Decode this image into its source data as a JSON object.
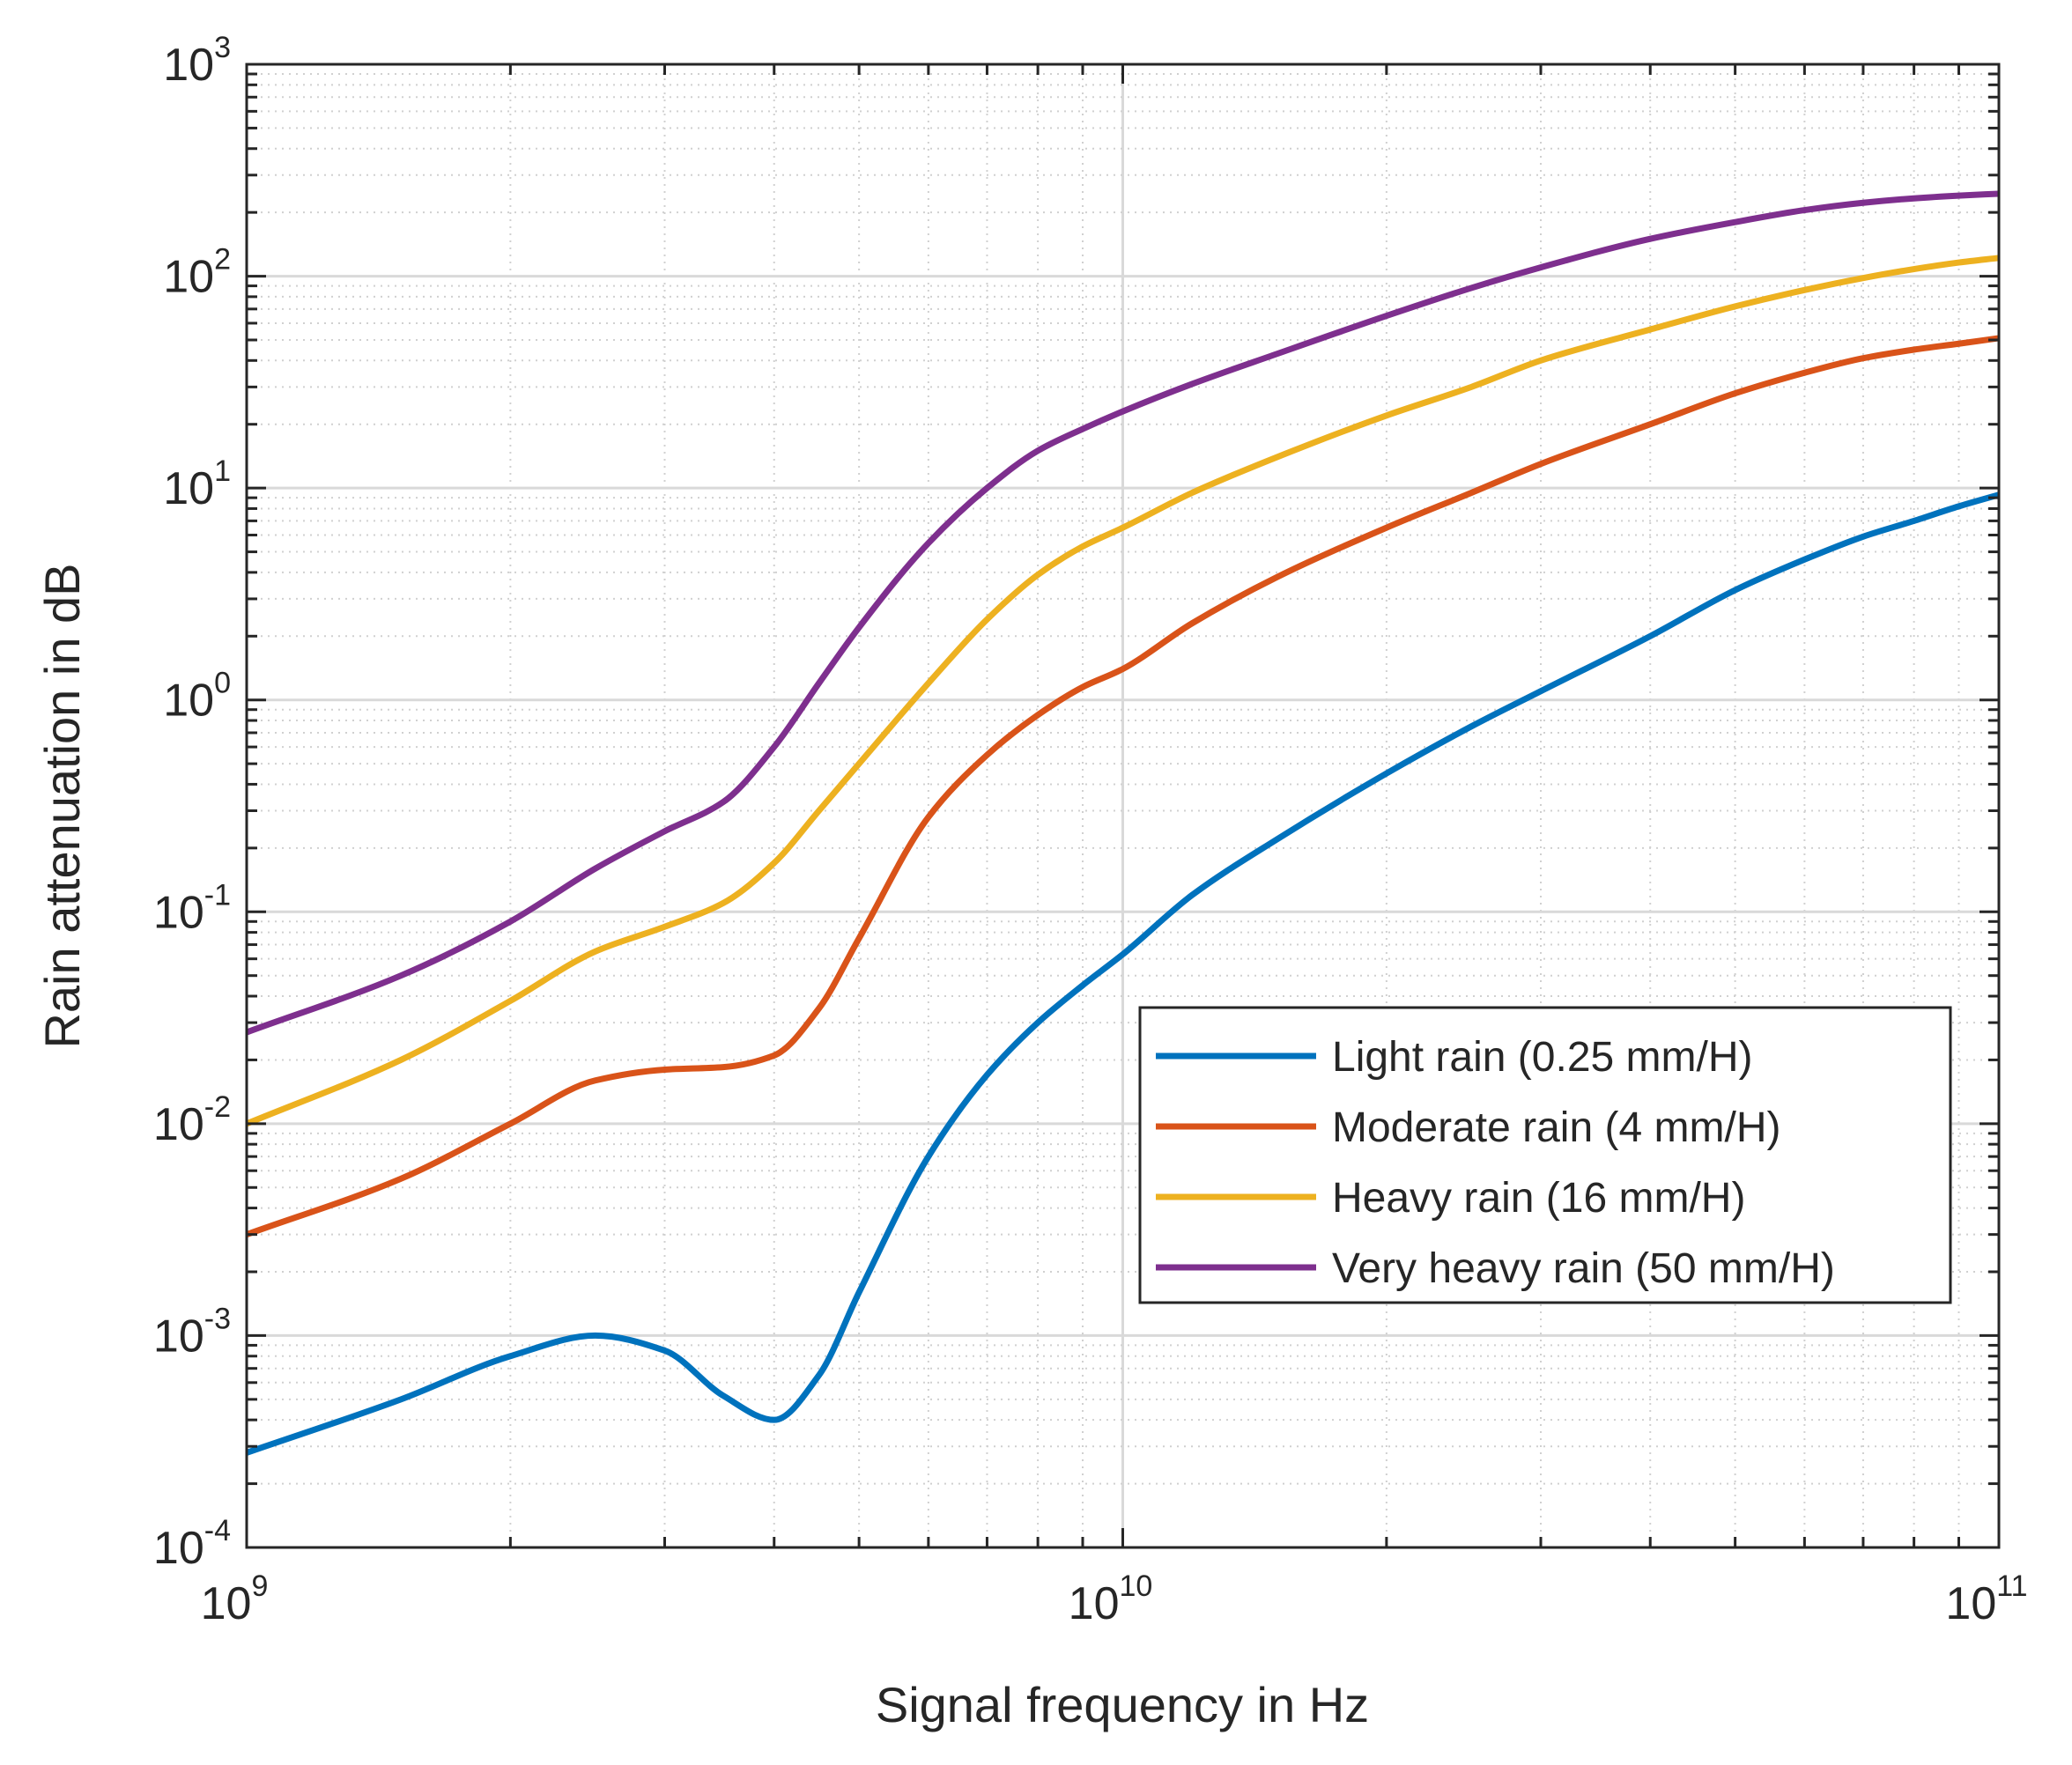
{
  "chart_data": {
    "type": "line",
    "title": "",
    "xlabel": "Signal frequency in Hz",
    "ylabel": "Rain attenuation in dB",
    "xscale": "log",
    "yscale": "log",
    "xlim": [
      1000000000.0,
      100000000000.0
    ],
    "ylim": [
      0.0001,
      1000
    ],
    "grid": "major and minor",
    "legend_location": "bottom-right",
    "x_ticks": [
      {
        "value": 1000000000.0,
        "base": "10",
        "exp": "9"
      },
      {
        "value": 10000000000.0,
        "base": "10",
        "exp": "10"
      },
      {
        "value": 100000000000.0,
        "base": "10",
        "exp": "11"
      }
    ],
    "y_ticks": [
      {
        "value": 0.0001,
        "base": "10",
        "exp": "-4"
      },
      {
        "value": 0.001,
        "base": "10",
        "exp": "-3"
      },
      {
        "value": 0.01,
        "base": "10",
        "exp": "-2"
      },
      {
        "value": 0.1,
        "base": "10",
        "exp": "-1"
      },
      {
        "value": 1,
        "base": "10",
        "exp": "0"
      },
      {
        "value": 10,
        "base": "10",
        "exp": "1"
      },
      {
        "value": 100,
        "base": "10",
        "exp": "2"
      },
      {
        "value": 1000,
        "base": "10",
        "exp": "3"
      }
    ],
    "x": [
      1000000000.0,
      1500000000.0,
      2000000000.0,
      2500000000.0,
      3000000000.0,
      3500000000.0,
      4000000000.0,
      4500000000.0,
      5000000000.0,
      6000000000.0,
      7000000000.0,
      8000000000.0,
      9000000000.0,
      10000000000.0,
      12000000000.0,
      15000000000.0,
      20000000000.0,
      25000000000.0,
      30000000000.0,
      40000000000.0,
      50000000000.0,
      60000000000.0,
      70000000000.0,
      80000000000.0,
      90000000000.0,
      100000000000.0
    ],
    "series": [
      {
        "name": "Light rain (0.25 mm/H)",
        "color": "#0072BD",
        "values": [
          0.00028,
          0.0005,
          0.0008,
          0.001,
          0.00085,
          0.00052,
          0.0004,
          0.00065,
          0.0016,
          0.007,
          0.017,
          0.03,
          0.045,
          0.063,
          0.12,
          0.22,
          0.45,
          0.75,
          1.1,
          2.0,
          3.3,
          4.6,
          5.9,
          7.0,
          8.2,
          9.3
        ]
      },
      {
        "name": "Moderate rain (4 mm/H)",
        "color": "#D95319",
        "values": [
          0.003,
          0.0055,
          0.01,
          0.016,
          0.018,
          0.0185,
          0.021,
          0.035,
          0.075,
          0.28,
          0.55,
          0.85,
          1.15,
          1.4,
          2.3,
          3.8,
          6.5,
          9.5,
          13.0,
          20.0,
          28.0,
          35.0,
          41.0,
          45.0,
          48.0,
          51.0
        ]
      },
      {
        "name": "Heavy rain (16 mm/H)",
        "color": "#EDB120",
        "values": [
          0.01,
          0.02,
          0.038,
          0.065,
          0.085,
          0.11,
          0.17,
          0.3,
          0.5,
          1.2,
          2.4,
          3.9,
          5.3,
          6.5,
          9.5,
          14.0,
          22.0,
          30.0,
          40.0,
          56.0,
          72.0,
          86.0,
          98.0,
          108.0,
          116.0,
          122.0
        ]
      },
      {
        "name": "Very heavy rain (50 mm/H)",
        "color": "#7E2F8E",
        "values": [
          0.027,
          0.05,
          0.09,
          0.16,
          0.24,
          0.33,
          0.6,
          1.2,
          2.2,
          5.5,
          10.0,
          15.0,
          19.0,
          23.0,
          31.0,
          43.0,
          65.0,
          88.0,
          110.0,
          150.0,
          180.0,
          205.0,
          222.0,
          233.0,
          240.0,
          245.0
        ]
      }
    ]
  }
}
